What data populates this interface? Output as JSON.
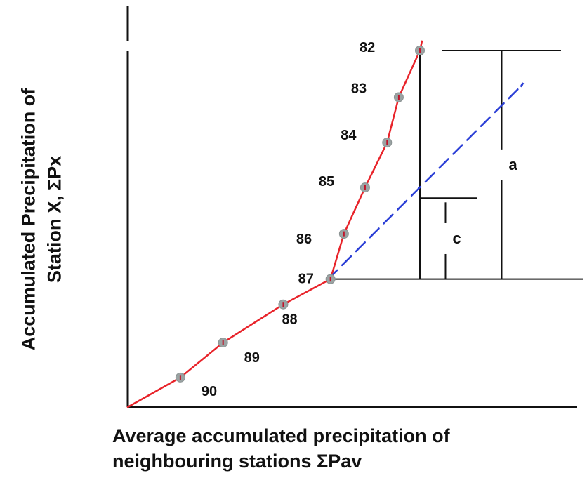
{
  "chart_data": {
    "type": "line",
    "title": "",
    "xlabel_lines": [
      "Average accumulated precipitation of",
      "neighbouring stations ΣPav"
    ],
    "ylabel_lines": [
      "Accumulated Precipitation of",
      "Station X, ΣPx"
    ],
    "grid": false,
    "legend": "none",
    "xlim": [
      0,
      100
    ],
    "ylim": [
      0,
      100
    ],
    "series": [
      {
        "color": "#e8232a",
        "style": "solid",
        "points": [
          {
            "label": "",
            "x": 0,
            "y": 0
          },
          {
            "label": "90",
            "x": 11.7,
            "y": 8.3
          },
          {
            "label": "89",
            "x": 21.2,
            "y": 18.1
          },
          {
            "label": "88",
            "x": 34.6,
            "y": 28.8
          },
          {
            "label": "87",
            "x": 45.1,
            "y": 35.9
          },
          {
            "label": "86",
            "x": 48.1,
            "y": 48.6
          },
          {
            "label": "85",
            "x": 52.8,
            "y": 61.6
          },
          {
            "label": "84",
            "x": 57.7,
            "y": 74.2
          },
          {
            "label": "83",
            "x": 60.3,
            "y": 86.9
          },
          {
            "label": "82",
            "x": 65.0,
            "y": 100
          }
        ],
        "extension": [
          {
            "x": 65.0,
            "y": 100
          },
          {
            "x": 65.5,
            "y": 102.8
          }
        ]
      },
      {
        "color": "#2b3fd6",
        "style": "dashed",
        "points": [
          {
            "x": 44.6,
            "y": 35.9
          },
          {
            "x": 87.8,
            "y": 90.4
          }
        ]
      }
    ],
    "annotations": [
      {
        "label": "a",
        "x": 83.2,
        "y_from": 35.9,
        "y_to": 100
      },
      {
        "label": "c",
        "x": 70.7,
        "y_from": 35.9,
        "y_to": 58.6
      }
    ],
    "reference_lines": {
      "baseline_y": 35.9,
      "baseline_x": [
        44.6,
        101.3
      ],
      "vertical_x": 65.0,
      "top_tick": {
        "y": 100,
        "x": [
          69.9,
          96.4
        ]
      },
      "mid_tick": {
        "y": 58.6,
        "x": [
          65.0,
          77.7
        ]
      }
    }
  }
}
